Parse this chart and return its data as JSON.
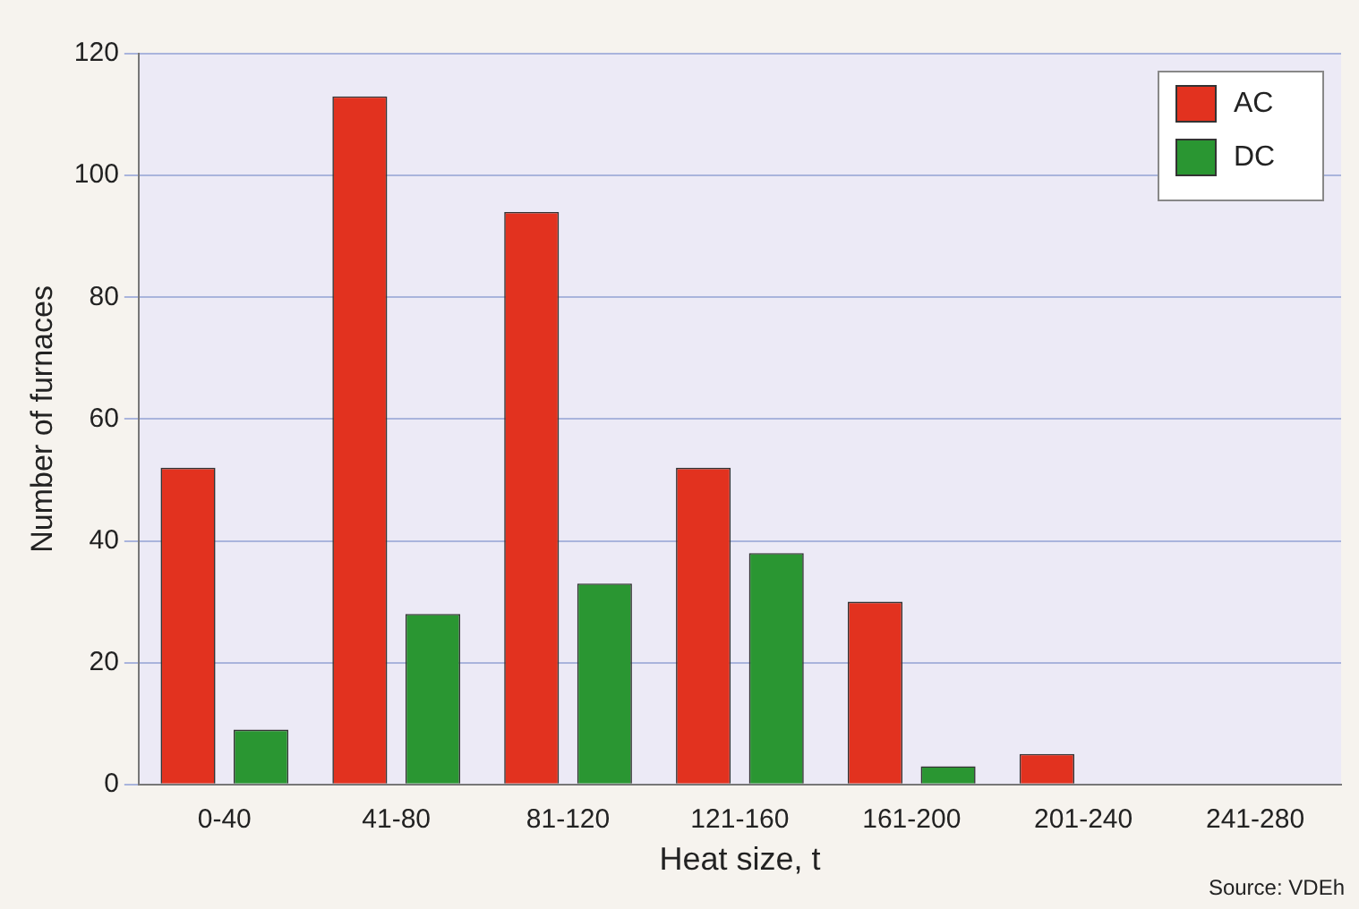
{
  "chart_data": {
    "type": "bar",
    "xlabel": "Heat size, t",
    "ylabel": "Number of furnaces",
    "categories": [
      "0-40",
      "41-80",
      "81-120",
      "121-160",
      "161-200",
      "201-240",
      "241-280"
    ],
    "series": [
      {
        "name": "AC",
        "color": "#e2321f",
        "values": [
          52,
          113,
          94,
          52,
          30,
          5,
          0
        ]
      },
      {
        "name": "DC",
        "color": "#2a9632",
        "values": [
          9,
          28,
          33,
          38,
          3,
          0,
          0
        ]
      }
    ],
    "ylim": [
      0,
      120
    ],
    "yticks": [
      0,
      20,
      40,
      60,
      80,
      100,
      120
    ],
    "grid": "y",
    "legend": "top right",
    "annotations": [
      "Source: VDEh"
    ]
  }
}
